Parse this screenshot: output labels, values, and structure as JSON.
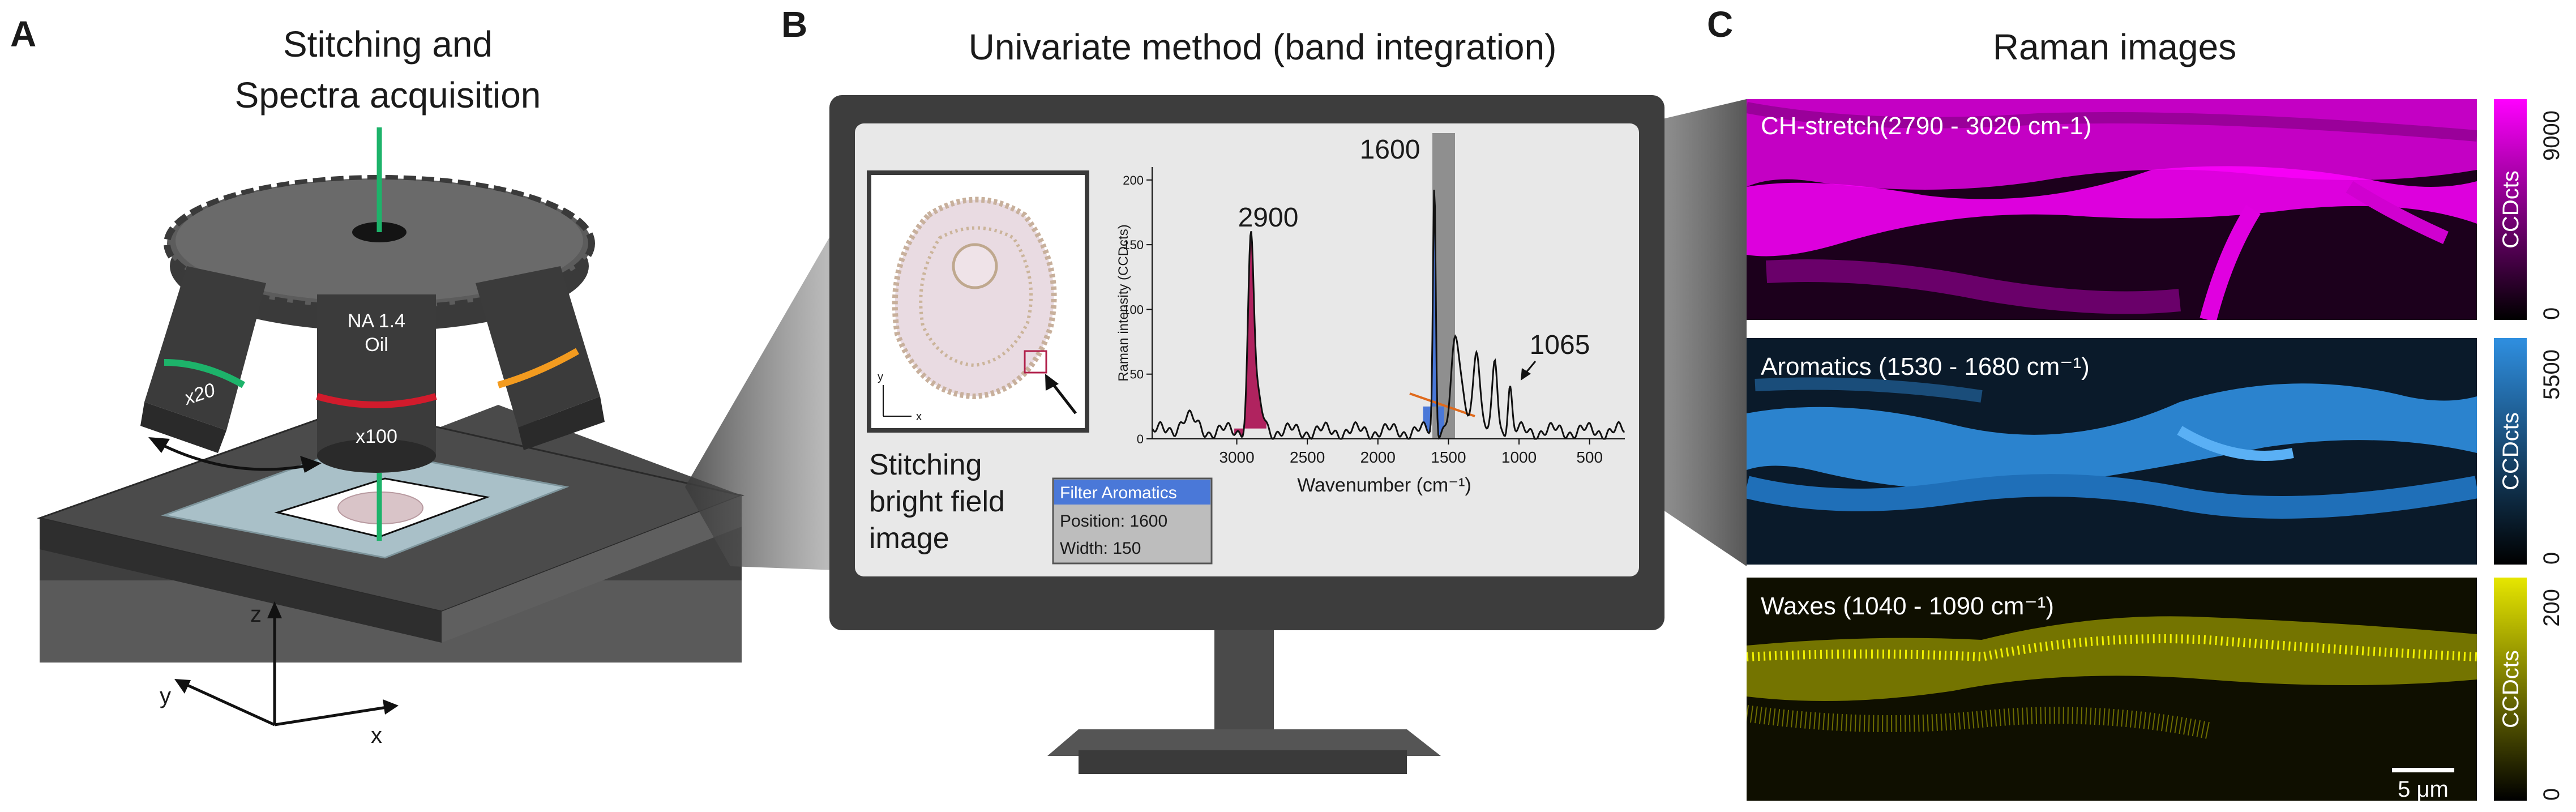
{
  "panel_a": {
    "letter": "A",
    "title_line1": "Stitching and",
    "title_line2": "Spectra acquisition",
    "objective_left": "x20",
    "objective_center_line1": "NA 1.4",
    "objective_center_line2": "Oil",
    "objective_center_mag": "x100",
    "axis_z": "z",
    "axis_y": "y",
    "axis_x": "x"
  },
  "panel_b": {
    "letter": "B",
    "title": "Univariate method (band integration)",
    "thumb_axis_y": "y",
    "thumb_axis_x": "x",
    "caption_line1": "Stitching",
    "caption_line2": "bright field",
    "caption_line3": "image",
    "filter_box": {
      "title": "Filter Aromatics",
      "position": "Position: 1600",
      "width": "Width: 150"
    },
    "spectrum": {
      "ylabel": "Raman intensity (CCDcts)",
      "xlabel": "Wavenumber (cm⁻¹)",
      "y_ticks": [
        "0",
        "50",
        "100",
        "150",
        "200"
      ],
      "x_ticks": [
        "3000",
        "2500",
        "2000",
        "1500",
        "1000",
        "500"
      ],
      "peak_labels": [
        "2900",
        "1600",
        "1065"
      ],
      "band_color": "#8f8f8f",
      "ch_band_color": "#b0235f",
      "aromatic_band_color": "#4a78d8"
    }
  },
  "panel_c": {
    "letter": "C",
    "title": "Raman images",
    "images": [
      {
        "label": "CH-stretch(2790 - 3020 cm-1)",
        "color": "#ff00ff",
        "cbar_max": "9000",
        "cbar_min": "0",
        "cbar_unit": "CCDcts"
      },
      {
        "label": "Aromatics (1530 - 1680 cm⁻¹)",
        "color": "#2f8fe0",
        "cbar_max": "5500",
        "cbar_min": "0",
        "cbar_unit": "CCDcts"
      },
      {
        "label": "Waxes (1040 - 1090 cm⁻¹)",
        "color": "#e6e600",
        "cbar_max": "200",
        "cbar_min": "0",
        "cbar_unit": "CCDcts"
      }
    ],
    "scalebar_label": "5 μm"
  }
}
